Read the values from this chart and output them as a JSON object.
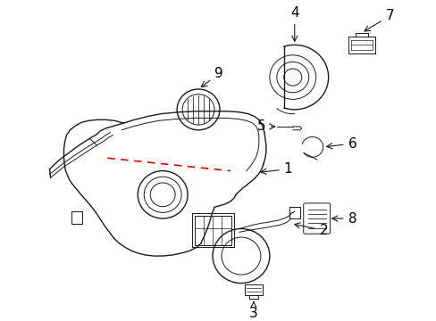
{
  "background_color": "#ffffff",
  "line_color": "#1a1a1a",
  "red_dashed_color": "#dd0000",
  "fig_width": 4.89,
  "fig_height": 3.6,
  "dpi": 100
}
